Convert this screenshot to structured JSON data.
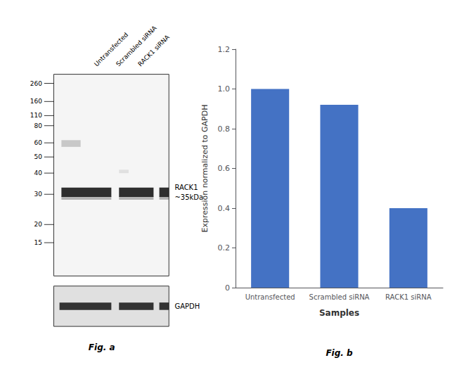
{
  "chart_data": [
    {
      "type": "blot",
      "title": "Fig. a",
      "categories": [
        "Untransfected",
        "Scrambled siRNA",
        "RACK1 siRNA"
      ],
      "annotations": [
        "260",
        "160",
        "110",
        "80",
        "60",
        "50",
        "40",
        "30",
        "20",
        "15",
        "RACK1\n~35kDa",
        "GAPDH"
      ]
    },
    {
      "type": "bar",
      "title": "Fig. b",
      "categories": [
        "Untransfected",
        "Scrambled siRNA",
        "RACK1 siRNA"
      ],
      "values": [
        1.0,
        0.92,
        0.4
      ],
      "color": "#4472C4",
      "xlabel": "Samples",
      "ylabel": "Expression normalized to GAPDH",
      "ylim": [
        0,
        1.2
      ],
      "yticks": [
        0,
        0.2,
        0.4,
        0.6,
        0.8,
        {
          "value": 1.0,
          "label": "1.0"
        },
        1.2
      ],
      "grid": false
    }
  ]
}
